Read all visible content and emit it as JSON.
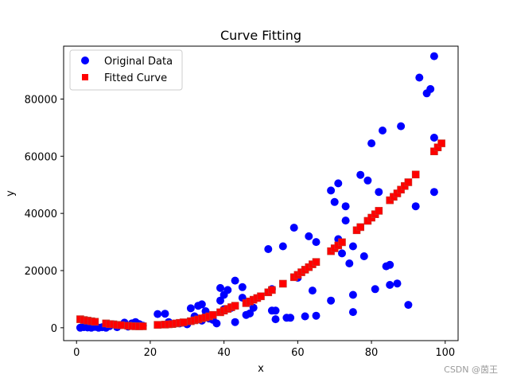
{
  "chart_data": {
    "type": "scatter",
    "title": "Curve Fitting",
    "xlabel": "x",
    "ylabel": "y",
    "xlim": [
      -3.5,
      103.5
    ],
    "ylim": [
      -4500,
      98500
    ],
    "xticks": [
      0,
      20,
      40,
      60,
      80,
      100
    ],
    "yticks": [
      0,
      20000,
      40000,
      60000,
      80000
    ],
    "xtick_labels": [
      "0",
      "20",
      "40",
      "60",
      "80",
      "100"
    ],
    "ytick_labels": [
      "0",
      "20000",
      "40000",
      "60000",
      "80000"
    ],
    "grid": false,
    "legend_position": "top-left",
    "series": [
      {
        "name": "Original Data",
        "marker": "circle",
        "color": "#0000ff",
        "points": [
          [
            1,
            0
          ],
          [
            2,
            200
          ],
          [
            3,
            100
          ],
          [
            4,
            0
          ],
          [
            5,
            300
          ],
          [
            6,
            0
          ],
          [
            7,
            200
          ],
          [
            8,
            0
          ],
          [
            9,
            600
          ],
          [
            10,
            1200
          ],
          [
            11,
            200
          ],
          [
            12,
            900
          ],
          [
            13,
            1800
          ],
          [
            14,
            400
          ],
          [
            15,
            1500
          ],
          [
            16,
            2000
          ],
          [
            17,
            1300
          ],
          [
            18,
            700
          ],
          [
            22,
            4800
          ],
          [
            24,
            4900
          ],
          [
            25,
            2000
          ],
          [
            28,
            1500
          ],
          [
            30,
            1200
          ],
          [
            31,
            6800
          ],
          [
            32,
            4000
          ],
          [
            33,
            7700
          ],
          [
            34,
            8200
          ],
          [
            34,
            2500
          ],
          [
            35,
            5800
          ],
          [
            36,
            3200
          ],
          [
            37,
            2800
          ],
          [
            38,
            1500
          ],
          [
            39,
            9500
          ],
          [
            39,
            13900
          ],
          [
            40,
            11500
          ],
          [
            40,
            6500
          ],
          [
            41,
            13200
          ],
          [
            42,
            7000
          ],
          [
            43,
            16500
          ],
          [
            43,
            2000
          ],
          [
            45,
            14200
          ],
          [
            45,
            10500
          ],
          [
            46,
            4500
          ],
          [
            47,
            5000
          ],
          [
            48,
            7000
          ],
          [
            52,
            27500
          ],
          [
            53,
            13500
          ],
          [
            53,
            6000
          ],
          [
            54,
            6000
          ],
          [
            54,
            3000
          ],
          [
            56,
            28500
          ],
          [
            57,
            3500
          ],
          [
            58,
            3500
          ],
          [
            59,
            35000
          ],
          [
            60,
            17500
          ],
          [
            62,
            4000
          ],
          [
            63,
            32000
          ],
          [
            64,
            13000
          ],
          [
            65,
            30000
          ],
          [
            65,
            4200
          ],
          [
            69,
            48000
          ],
          [
            69,
            9500
          ],
          [
            70,
            44000
          ],
          [
            71,
            50500
          ],
          [
            71,
            31000
          ],
          [
            72,
            26000
          ],
          [
            73,
            37500
          ],
          [
            73,
            42500
          ],
          [
            74,
            22500
          ],
          [
            75,
            11500
          ],
          [
            75,
            28500
          ],
          [
            75,
            5500
          ],
          [
            77,
            53500
          ],
          [
            78,
            25000
          ],
          [
            79,
            51500
          ],
          [
            80,
            64500
          ],
          [
            81,
            13500
          ],
          [
            82,
            47500
          ],
          [
            83,
            69000
          ],
          [
            84,
            21500
          ],
          [
            85,
            22000
          ],
          [
            85,
            15000
          ],
          [
            87,
            15500
          ],
          [
            88,
            70500
          ],
          [
            90,
            8000
          ],
          [
            92,
            42500
          ],
          [
            93,
            87500
          ],
          [
            95,
            82000
          ],
          [
            96,
            83500
          ],
          [
            97,
            95000
          ],
          [
            97,
            66500
          ],
          [
            97,
            47500
          ]
        ]
      },
      {
        "name": "Fitted Curve",
        "marker": "square",
        "color": "#ff0000",
        "edge_color": "#c0392b",
        "x": [
          1,
          2,
          3,
          4,
          5,
          8,
          9,
          10,
          11,
          12,
          14,
          15,
          16,
          17,
          18,
          22,
          24,
          25,
          26,
          27,
          28,
          29,
          31,
          32,
          33,
          34,
          35,
          36,
          37,
          39,
          40,
          41,
          42,
          43,
          46,
          47,
          48,
          49,
          50,
          52,
          53,
          56,
          59,
          60,
          61,
          62,
          63,
          64,
          65,
          69,
          70,
          71,
          72,
          76,
          77,
          79,
          80,
          81,
          82,
          85,
          86,
          87,
          88,
          89,
          90,
          92,
          97,
          98,
          99
        ],
        "y": [
          3000,
          2700,
          2500,
          2300,
          2100,
          1500,
          1300,
          1200,
          1000,
          900,
          700,
          600,
          500,
          500,
          500,
          1000,
          1100,
          1200,
          1300,
          1500,
          1700,
          1900,
          2300,
          2600,
          2900,
          3300,
          3600,
          4000,
          4500,
          5400,
          6000,
          6600,
          7200,
          7700,
          8600,
          9200,
          9800,
          10400,
          11000,
          12400,
          13200,
          15400,
          17700,
          18500,
          19400,
          20300,
          21200,
          22200,
          23000,
          26800,
          27800,
          28800,
          29900,
          34100,
          35200,
          37400,
          38500,
          39700,
          40900,
          44600,
          45800,
          47000,
          48300,
          49600,
          50900,
          53600,
          61700,
          63100,
          64500
        ]
      }
    ]
  },
  "watermark": "CSDN @茵王"
}
